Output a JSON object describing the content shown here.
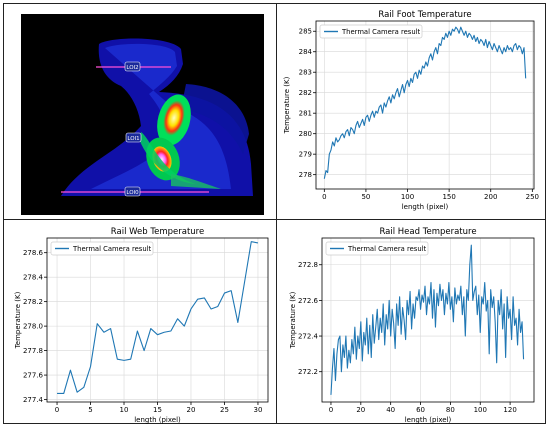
{
  "figure": {
    "thermal_image": {
      "labels": [
        "LOI2",
        "LOI1",
        "LOI0"
      ],
      "colors": {
        "background": "#000000",
        "body": "#0a1ec8",
        "warm": "#00e05a",
        "hot": "#ff2222",
        "hottest": "#ff66ff",
        "line": "#ff4fd8"
      }
    }
  },
  "chart_data": [
    {
      "id": "foot",
      "type": "line",
      "title": "Rail Foot Temperature",
      "xlabel": "length (pixel)",
      "ylabel": "Temperature (K)",
      "xlim": [
        -10,
        252
      ],
      "ylim": [
        277.3,
        285.5
      ],
      "xticks": [
        0,
        50,
        100,
        150,
        200,
        250
      ],
      "yticks": [
        278,
        279,
        280,
        281,
        282,
        283,
        284,
        285
      ],
      "grid": true,
      "legend": "upper left",
      "color": "#1f77b4",
      "series": [
        {
          "name": "Thermal Camera result",
          "x": [
            0,
            2,
            4,
            6,
            8,
            10,
            12,
            14,
            16,
            18,
            20,
            22,
            24,
            26,
            28,
            30,
            32,
            34,
            36,
            38,
            40,
            42,
            44,
            46,
            48,
            50,
            52,
            54,
            56,
            58,
            60,
            62,
            64,
            66,
            68,
            70,
            72,
            74,
            76,
            78,
            80,
            82,
            84,
            86,
            88,
            90,
            92,
            94,
            96,
            98,
            100,
            102,
            104,
            106,
            108,
            110,
            112,
            114,
            116,
            118,
            120,
            122,
            124,
            126,
            128,
            130,
            132,
            134,
            136,
            138,
            140,
            142,
            144,
            146,
            148,
            150,
            152,
            154,
            156,
            158,
            160,
            162,
            164,
            166,
            168,
            170,
            172,
            174,
            176,
            178,
            180,
            182,
            184,
            186,
            188,
            190,
            192,
            194,
            196,
            198,
            200,
            202,
            204,
            206,
            208,
            210,
            212,
            214,
            216,
            218,
            220,
            222,
            224,
            226,
            228,
            230,
            232,
            234,
            236,
            238,
            240,
            242
          ],
          "y": [
            277.8,
            278.2,
            278.1,
            279.0,
            279.2,
            279.6,
            279.4,
            279.8,
            279.6,
            279.7,
            279.9,
            280.0,
            279.8,
            280.1,
            280.2,
            279.9,
            280.3,
            280.2,
            280.0,
            280.4,
            280.6,
            280.3,
            280.5,
            280.7,
            280.4,
            280.8,
            280.9,
            280.6,
            280.9,
            281.1,
            280.8,
            281.1,
            281.0,
            281.3,
            281.4,
            281.0,
            281.5,
            281.3,
            281.6,
            281.8,
            281.5,
            281.9,
            281.7,
            282.0,
            282.2,
            281.8,
            282.1,
            282.4,
            282.0,
            282.4,
            282.6,
            282.3,
            282.7,
            282.5,
            282.9,
            283.0,
            282.7,
            283.1,
            282.9,
            283.3,
            283.2,
            283.5,
            283.3,
            283.7,
            283.9,
            283.6,
            284.0,
            284.2,
            283.9,
            284.4,
            284.3,
            284.7,
            284.6,
            284.9,
            284.7,
            285.0,
            284.8,
            285.1,
            285.0,
            285.2,
            285.1,
            284.9,
            285.2,
            285.0,
            284.8,
            285.0,
            284.7,
            284.9,
            284.8,
            284.6,
            284.8,
            284.5,
            284.7,
            284.4,
            284.6,
            284.5,
            284.3,
            284.6,
            284.2,
            284.5,
            284.3,
            284.1,
            284.4,
            284.2,
            284.0,
            284.3,
            284.1,
            283.9,
            284.2,
            284.0,
            284.3,
            284.1,
            284.2,
            284.0,
            284.3,
            284.4,
            284.1,
            284.3,
            284.2,
            283.9,
            284.2,
            282.7
          ]
        }
      ]
    },
    {
      "id": "web",
      "type": "line",
      "title": "Rail Web Temperature",
      "xlabel": "length (pixel)",
      "ylabel": "Temperature (K)",
      "xlim": [
        -1.5,
        31.5
      ],
      "ylim": [
        277.38,
        278.72
      ],
      "xticks": [
        0,
        5,
        10,
        15,
        20,
        25,
        30
      ],
      "yticks": [
        277.4,
        277.6,
        277.8,
        278.0,
        278.2,
        278.4,
        278.6
      ],
      "grid": true,
      "legend": "upper left",
      "color": "#1f77b4",
      "series": [
        {
          "name": "Thermal Camera result",
          "x": [
            0,
            1,
            2,
            3,
            4,
            5,
            6,
            7,
            8,
            9,
            10,
            11,
            12,
            13,
            14,
            15,
            16,
            17,
            18,
            19,
            20,
            21,
            22,
            23,
            24,
            25,
            26,
            27,
            28,
            29,
            30
          ],
          "y": [
            277.45,
            277.45,
            277.64,
            277.46,
            277.5,
            277.67,
            278.02,
            277.95,
            277.98,
            277.73,
            277.72,
            277.73,
            277.96,
            277.8,
            277.98,
            277.93,
            277.95,
            277.96,
            278.06,
            278.0,
            278.14,
            278.22,
            278.23,
            278.14,
            278.16,
            278.27,
            278.29,
            278.03,
            278.36,
            278.69,
            278.68
          ]
        }
      ]
    },
    {
      "id": "head",
      "type": "line",
      "title": "Rail Head Temperature",
      "xlabel": "length (pixel)",
      "ylabel": "Temperature (K)",
      "xlim": [
        -6,
        136
      ],
      "ylim": [
        272.03,
        272.95
      ],
      "xticks": [
        0,
        20,
        40,
        60,
        80,
        100,
        120
      ],
      "yticks": [
        272.2,
        272.4,
        272.6,
        272.8
      ],
      "grid": true,
      "legend": "upper left",
      "color": "#1f77b4",
      "series": [
        {
          "name": "Thermal Camera result",
          "x": [
            0,
            1,
            2,
            3,
            4,
            5,
            6,
            7,
            8,
            9,
            10,
            11,
            12,
            13,
            14,
            15,
            16,
            17,
            18,
            19,
            20,
            21,
            22,
            23,
            24,
            25,
            26,
            27,
            28,
            29,
            30,
            31,
            32,
            33,
            34,
            35,
            36,
            37,
            38,
            39,
            40,
            41,
            42,
            43,
            44,
            45,
            46,
            47,
            48,
            49,
            50,
            51,
            52,
            53,
            54,
            55,
            56,
            57,
            58,
            59,
            60,
            61,
            62,
            63,
            64,
            65,
            66,
            67,
            68,
            69,
            70,
            71,
            72,
            73,
            74,
            75,
            76,
            77,
            78,
            79,
            80,
            81,
            82,
            83,
            84,
            85,
            86,
            87,
            88,
            89,
            90,
            91,
            92,
            93,
            94,
            95,
            96,
            97,
            98,
            99,
            100,
            101,
            102,
            103,
            104,
            105,
            106,
            107,
            108,
            109,
            110,
            111,
            112,
            113,
            114,
            115,
            116,
            117,
            118,
            119,
            120,
            121,
            122,
            123,
            124,
            125,
            126,
            127,
            128,
            129
          ],
          "y": [
            272.07,
            272.22,
            272.33,
            272.15,
            272.3,
            272.38,
            272.4,
            272.2,
            272.35,
            272.28,
            272.4,
            272.22,
            272.32,
            272.25,
            272.38,
            272.3,
            272.45,
            272.27,
            272.4,
            272.33,
            272.48,
            272.26,
            272.42,
            272.35,
            272.5,
            272.3,
            272.46,
            272.28,
            272.52,
            272.36,
            272.45,
            272.55,
            272.38,
            272.5,
            272.42,
            272.58,
            272.35,
            272.52,
            272.44,
            272.6,
            272.4,
            272.55,
            272.47,
            272.33,
            272.58,
            272.46,
            272.62,
            272.41,
            272.56,
            272.49,
            272.38,
            272.6,
            272.52,
            272.65,
            272.44,
            272.58,
            272.5,
            272.62,
            272.6,
            272.66,
            272.55,
            272.63,
            272.59,
            272.68,
            272.52,
            272.62,
            272.58,
            272.7,
            272.5,
            272.66,
            272.45,
            272.64,
            272.57,
            272.69,
            272.6,
            272.66,
            272.52,
            272.64,
            272.58,
            272.7,
            272.55,
            272.62,
            272.48,
            272.67,
            272.58,
            272.63,
            272.6,
            272.68,
            272.52,
            272.62,
            272.4,
            272.66,
            272.6,
            272.8,
            272.91,
            272.6,
            272.65,
            272.68,
            272.52,
            272.63,
            272.42,
            272.62,
            272.58,
            272.7,
            272.54,
            272.6,
            272.3,
            272.66,
            272.56,
            272.62,
            272.48,
            272.25,
            272.6,
            272.52,
            272.66,
            272.44,
            272.58,
            272.28,
            272.62,
            272.5,
            272.55,
            272.38,
            272.62,
            272.46,
            272.5,
            272.35,
            272.55,
            272.42,
            272.48,
            272.27
          ]
        }
      ]
    }
  ]
}
